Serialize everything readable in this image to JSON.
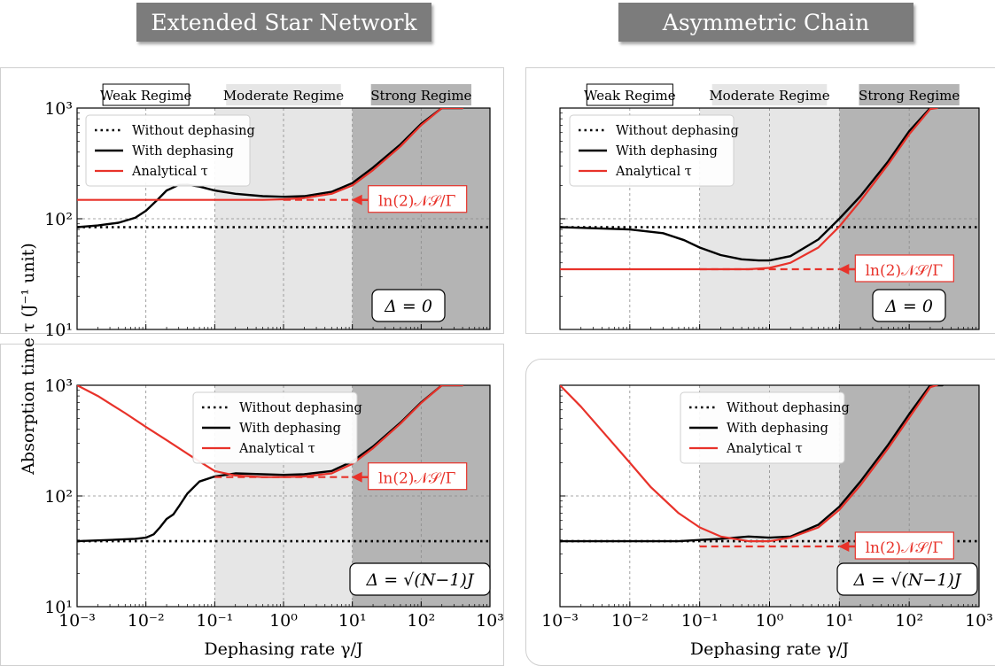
{
  "headers": {
    "left": "Extended Star Network",
    "right": "Asymmetric Chain"
  },
  "regimes": {
    "weak": "Weak Regime",
    "moderate": "Moderate Regime",
    "strong": "Strong Regime"
  },
  "axes": {
    "ylabel": "Absorption time τ (J⁻¹ unit)",
    "xlabel": "Dephasing rate γ/J",
    "xticks": [
      "10⁻³",
      "10⁻²",
      "10⁻¹",
      "10⁰",
      "10¹",
      "10²",
      "10³"
    ],
    "yticks": [
      "10¹",
      "10²",
      "10³"
    ]
  },
  "legend": [
    "Without dephasing",
    "With dephasing",
    "Analytical τ"
  ],
  "arrow_label": "ln(2)𝒩𝒮/Γ",
  "colors": {
    "without": "#000000",
    "with": "#000000",
    "analytical": "#e8322a",
    "moderate_bg": "#e6e6e6",
    "strong_bg": "#b4b4b4"
  },
  "chart_data": [
    {
      "type": "line",
      "panel": "Extended Star Network, Δ = 0",
      "annotation": "Δ = 0",
      "xscale": "log",
      "yscale": "log",
      "xlim": [
        0.001,
        1000
      ],
      "ylim": [
        10,
        1000
      ],
      "regime_bounds": [
        0.1,
        10
      ],
      "series": [
        {
          "name": "Without dephasing",
          "style": "dotted",
          "x": [
            0.001,
            1000
          ],
          "y": [
            84,
            84
          ]
        },
        {
          "name": "With dephasing",
          "style": "solid",
          "x": [
            0.001,
            0.002,
            0.004,
            0.007,
            0.01,
            0.015,
            0.02,
            0.03,
            0.04,
            0.06,
            0.1,
            0.2,
            0.5,
            1,
            2,
            5,
            10,
            20,
            50,
            100,
            200,
            400
          ],
          "y": [
            84,
            87,
            92,
            102,
            118,
            150,
            180,
            202,
            203,
            195,
            180,
            168,
            160,
            158,
            160,
            175,
            210,
            290,
            470,
            720,
            1000,
            1000
          ]
        },
        {
          "name": "Analytical τ",
          "style": "solid",
          "x": [
            0.001,
            0.5,
            1,
            2,
            5,
            10,
            20,
            50,
            100,
            200,
            400
          ],
          "y": [
            148,
            148,
            150,
            154,
            168,
            200,
            275,
            450,
            700,
            1000,
            1000
          ]
        },
        {
          "name": "ln(2)𝒩𝒮/Γ",
          "style": "dashed",
          "x": [
            1,
            10
          ],
          "y": [
            148,
            148
          ]
        }
      ]
    },
    {
      "type": "line",
      "panel": "Asymmetric Chain, Δ = 0",
      "annotation": "Δ = 0",
      "xscale": "log",
      "yscale": "log",
      "xlim": [
        0.001,
        1000
      ],
      "ylim": [
        10,
        1000
      ],
      "regime_bounds": [
        0.1,
        10
      ],
      "series": [
        {
          "name": "Without dephasing",
          "style": "dotted",
          "x": [
            0.001,
            1000
          ],
          "y": [
            84,
            84
          ]
        },
        {
          "name": "With dephasing",
          "style": "solid",
          "x": [
            0.001,
            0.01,
            0.03,
            0.06,
            0.1,
            0.2,
            0.4,
            0.7,
            1,
            2,
            5,
            10,
            20,
            50,
            100,
            200
          ],
          "y": [
            84,
            80,
            74,
            64,
            55,
            47,
            43,
            42,
            42,
            46,
            65,
            100,
            160,
            330,
            620,
            1000
          ]
        },
        {
          "name": "Analytical τ",
          "style": "solid",
          "x": [
            0.001,
            0.5,
            1,
            2,
            5,
            10,
            20,
            50,
            100,
            200,
            250
          ],
          "y": [
            35,
            35,
            36,
            40,
            55,
            85,
            145,
            310,
            580,
            980,
            1000
          ]
        },
        {
          "name": "ln(2)𝒩𝒮/Γ",
          "style": "dashed",
          "x": [
            0.1,
            10
          ],
          "y": [
            35,
            35
          ]
        }
      ]
    },
    {
      "type": "line",
      "panel": "Extended Star Network, Δ = √(N−1)J",
      "annotation": "Δ = √(N−1)J",
      "xscale": "log",
      "yscale": "log",
      "xlim": [
        0.001,
        1000
      ],
      "ylim": [
        10,
        1000
      ],
      "regime_bounds": [
        0.1,
        10
      ],
      "series": [
        {
          "name": "Without dephasing",
          "style": "dotted",
          "x": [
            0.001,
            1000
          ],
          "y": [
            39,
            39
          ]
        },
        {
          "name": "With dephasing",
          "style": "solid",
          "x": [
            0.001,
            0.003,
            0.007,
            0.01,
            0.013,
            0.016,
            0.02,
            0.025,
            0.03,
            0.04,
            0.06,
            0.1,
            0.2,
            0.5,
            1,
            2,
            5,
            10,
            20,
            50,
            100,
            200,
            400
          ],
          "y": [
            39,
            40,
            41,
            42,
            45,
            52,
            62,
            68,
            80,
            105,
            135,
            150,
            160,
            157,
            155,
            157,
            168,
            205,
            280,
            460,
            700,
            1000,
            1000
          ]
        },
        {
          "name": "Analytical τ",
          "style": "solid",
          "x": [
            0.001,
            0.002,
            0.005,
            0.01,
            0.02,
            0.05,
            0.1,
            0.2,
            0.5,
            1,
            2,
            5,
            10,
            20,
            50,
            100,
            200,
            400
          ],
          "y": [
            1000,
            800,
            560,
            420,
            320,
            220,
            168,
            153,
            148,
            148,
            150,
            160,
            195,
            270,
            450,
            690,
            1000,
            1000
          ]
        },
        {
          "name": "ln(2)𝒩𝒮/Γ",
          "style": "dashed",
          "x": [
            0.1,
            10
          ],
          "y": [
            148,
            148
          ]
        }
      ]
    },
    {
      "type": "line",
      "panel": "Asymmetric Chain, Δ = √(N−1)J",
      "annotation": "Δ = √(N−1)J",
      "xscale": "log",
      "yscale": "log",
      "xlim": [
        0.001,
        1000
      ],
      "ylim": [
        10,
        1000
      ],
      "regime_bounds": [
        0.1,
        10
      ],
      "series": [
        {
          "name": "Without dephasing",
          "style": "dotted",
          "x": [
            0.001,
            1000
          ],
          "y": [
            39,
            39
          ]
        },
        {
          "name": "With dephasing",
          "style": "solid",
          "x": [
            0.001,
            0.05,
            0.1,
            0.2,
            0.5,
            1,
            2,
            5,
            10,
            20,
            50,
            100,
            200,
            300
          ],
          "y": [
            39,
            39,
            40,
            41,
            43,
            42,
            43,
            55,
            80,
            135,
            290,
            550,
            1000,
            1000
          ]
        },
        {
          "name": "Analytical τ",
          "style": "solid",
          "x": [
            0.001,
            0.002,
            0.005,
            0.01,
            0.02,
            0.05,
            0.1,
            0.2,
            0.5,
            1,
            2,
            5,
            10,
            20,
            50,
            100,
            200,
            250
          ],
          "y": [
            1000,
            640,
            330,
            200,
            120,
            70,
            52,
            43,
            39,
            39,
            42,
            52,
            75,
            125,
            270,
            510,
            960,
            1000
          ]
        },
        {
          "name": "ln(2)𝒩𝒮/Γ",
          "style": "dashed",
          "x": [
            0.1,
            10
          ],
          "y": [
            35,
            35
          ]
        }
      ]
    }
  ]
}
